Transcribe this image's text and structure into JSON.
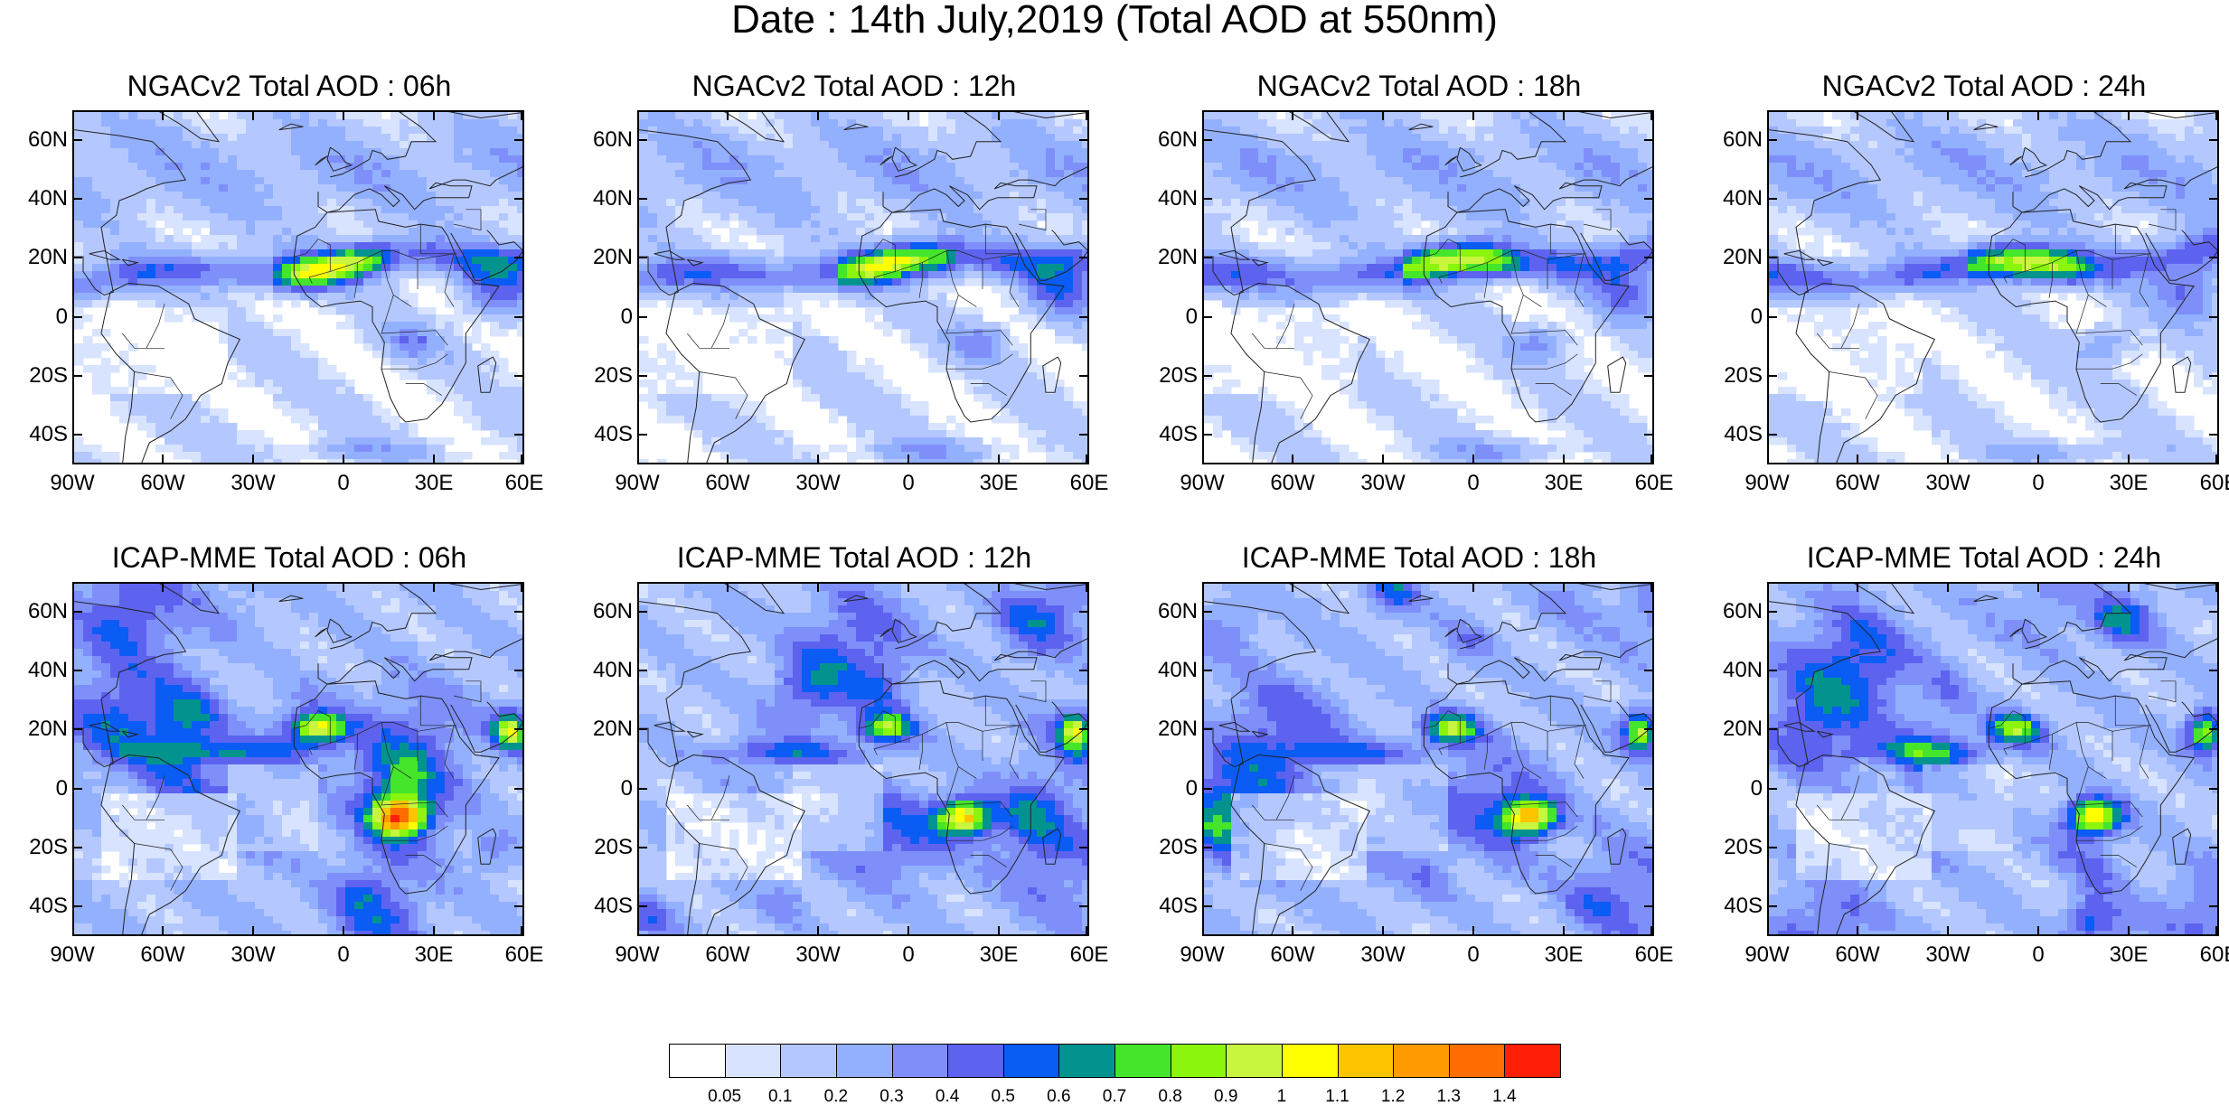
{
  "figure_title": "Date : 14th July,2019 (Total AOD at 550nm)",
  "panels": [
    {
      "model": "NGACv2",
      "title": "NGACv2 Total AOD : 06h",
      "hour": "06h"
    },
    {
      "model": "NGACv2",
      "title": "NGACv2 Total AOD : 12h",
      "hour": "12h"
    },
    {
      "model": "NGACv2",
      "title": "NGACv2 Total AOD : 18h",
      "hour": "18h"
    },
    {
      "model": "NGACv2",
      "title": "NGACv2 Total AOD : 24h",
      "hour": "24h"
    },
    {
      "model": "ICAP-MME",
      "title": "ICAP-MME Total AOD : 06h",
      "hour": "06h"
    },
    {
      "model": "ICAP-MME",
      "title": "ICAP-MME Total AOD : 12h",
      "hour": "12h"
    },
    {
      "model": "ICAP-MME",
      "title": "ICAP-MME Total AOD : 18h",
      "hour": "18h"
    },
    {
      "model": "ICAP-MME",
      "title": "ICAP-MME Total AOD : 24h",
      "hour": "24h"
    }
  ],
  "map": {
    "lon_range": [
      -90,
      60
    ],
    "lat_range": [
      -50,
      70
    ],
    "lat_ticks": [
      "60N",
      "40N",
      "20N",
      "0",
      "20S",
      "40S"
    ],
    "lon_ticks": [
      "90W",
      "60W",
      "30W",
      "0",
      "30E",
      "60E"
    ]
  },
  "colorbar": {
    "labels": [
      "0.05",
      "0.1",
      "0.2",
      "0.3",
      "0.4",
      "0.5",
      "0.6",
      "0.7",
      "0.8",
      "0.9",
      "1",
      "1.1",
      "1.2",
      "1.3",
      "1.4"
    ],
    "colors": [
      "#ffffff",
      "#d7e3ff",
      "#b4c8ff",
      "#93b0ff",
      "#7e8ffa",
      "#5d63ef",
      "#0a5cf5",
      "#03938f",
      "#44e52a",
      "#8bf50d",
      "#c8f53e",
      "#ffff00",
      "#ffc400",
      "#ff9b00",
      "#ff6d00",
      "#ff1e08"
    ]
  }
}
